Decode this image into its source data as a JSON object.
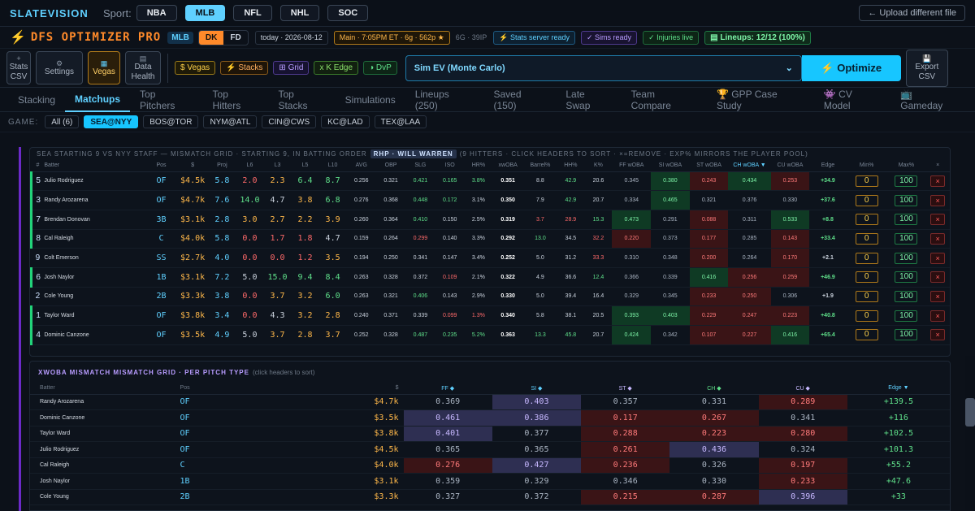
{
  "topbar": {
    "brand": "SLATEVISION",
    "sport_label": "Sport:",
    "sports": [
      {
        "label": "NBA",
        "active": false
      },
      {
        "label": "MLB",
        "active": true
      },
      {
        "label": "NFL",
        "active": false
      },
      {
        "label": "NHL",
        "active": false
      },
      {
        "label": "SOC",
        "active": false
      }
    ],
    "upload_label": "← Upload different file"
  },
  "header": {
    "bolt": "⚡",
    "title": "DFS OPTIMIZER PRO",
    "league": "MLB",
    "site_dk": "DK",
    "site_fd": "FD",
    "date": "today · 2026-08-12",
    "slate": "Main · 7:05PM ET · 6g · 562p ★",
    "slate_meta": "6G · 39IP",
    "stats_status": "⚡ Stats server ready",
    "sims_status": "✓ Sims ready",
    "injuries_status": "✓ Injuries live",
    "lineups_status": "▤ Lineups: 12/12 (100%)"
  },
  "toolbar": {
    "stats_csv": "Stats CSV",
    "settings": "Settings",
    "vegas": "Vegas",
    "data_health": "Data Health",
    "filters": [
      "$ Vegas",
      "⚡ Stacks",
      "⊞ Grid",
      "x K Edge",
      "◑ DvP"
    ],
    "sim_mode": "Sim EV (Monte Carlo)",
    "optimize": "⚡ Optimize",
    "export_csv": "Export CSV"
  },
  "tabs": [
    "Stacking",
    "Matchups",
    "Top Pitchers",
    "Top Hitters",
    "Top Stacks",
    "Simulations",
    "Lineups (250)",
    "Saved (150)",
    "Late Swap",
    "Team Compare",
    "🏆 GPP Case Study",
    "👾 CV Model",
    "📺 Gameday"
  ],
  "active_tab": "Matchups",
  "games": {
    "label": "GAME:",
    "items": [
      {
        "label": "All (6)",
        "active": false
      },
      {
        "label": "SEA@NYY",
        "active": true
      },
      {
        "label": "BOS@TOR",
        "active": false
      },
      {
        "label": "NYM@ATL",
        "active": false
      },
      {
        "label": "CIN@CWS",
        "active": false
      },
      {
        "label": "KC@LAD",
        "active": false
      },
      {
        "label": "TEX@LAA",
        "active": false
      }
    ]
  },
  "grid": {
    "title": "SEA STARTING 9 VS NYY STAFF — MISMATCH GRID · STARTING 9, IN BATTING ORDER",
    "pitcher": "RHP · WILL WARREN",
    "note": "(9 HITTERS · CLICK HEADERS TO SORT · ×=REMOVE · EXP% MIRRORS THE PLAYER POOL)",
    "headers": [
      "#",
      "Batter",
      "Pos",
      "$",
      "Proj",
      "L6",
      "L3",
      "L5",
      "L10",
      "AVG",
      "OBP",
      "SLG",
      "ISO",
      "HR%",
      "xwOBA",
      "Barrel%",
      "HH%",
      "K%",
      "FF wOBA",
      "SI wOBA",
      "ST wOBA",
      "CH wOBA ▼",
      "CU wOBA",
      "Edge",
      "Min%",
      "Max%",
      "×"
    ],
    "rows": [
      [
        "5",
        "Julio Rodriguez",
        "OF",
        "$4.5k",
        "5.8",
        "2.0",
        "2.3",
        "6.4",
        "8.7",
        "0.256",
        "0.321",
        "0.421",
        "0.165",
        "3.8%",
        "0.351",
        "8.8",
        "42.9",
        "20.6",
        "0.345",
        "0.380",
        "0.243",
        "0.434",
        "0.253",
        "+34.9",
        "0",
        "100",
        "×"
      ],
      [
        "3",
        "Randy Arozarena",
        "OF",
        "$4.7k",
        "7.6",
        "14.0",
        "4.7",
        "3.8",
        "6.8",
        "0.276",
        "0.368",
        "0.448",
        "0.172",
        "3.1%",
        "0.350",
        "7.9",
        "42.9",
        "20.7",
        "0.334",
        "0.465",
        "0.321",
        "0.376",
        "0.330",
        "+37.6",
        "0",
        "100",
        "×"
      ],
      [
        "7",
        "Brendan Donovan",
        "3B",
        "$3.1k",
        "2.8",
        "3.0",
        "2.7",
        "2.2",
        "3.9",
        "0.260",
        "0.364",
        "0.410",
        "0.150",
        "2.5%",
        "0.319",
        "3.7",
        "28.9",
        "15.3",
        "0.473",
        "0.291",
        "0.088",
        "0.311",
        "0.533",
        "+8.8",
        "0",
        "100",
        "×"
      ],
      [
        "8",
        "Cal Raleigh",
        "C",
        "$4.0k",
        "5.8",
        "0.0",
        "1.7",
        "1.8",
        "4.7",
        "0.159",
        "0.264",
        "0.299",
        "0.140",
        "3.3%",
        "0.292",
        "13.0",
        "34.5",
        "32.2",
        "0.220",
        "0.373",
        "0.177",
        "0.285",
        "0.143",
        "+33.4",
        "0",
        "100",
        "×"
      ],
      [
        "9",
        "Colt Emerson",
        "SS",
        "$2.7k",
        "4.0",
        "0.0",
        "0.0",
        "1.2",
        "3.5",
        "0.194",
        "0.250",
        "0.341",
        "0.147",
        "3.4%",
        "0.252",
        "5.0",
        "31.2",
        "33.3",
        "0.310",
        "0.348",
        "0.200",
        "0.264",
        "0.170",
        "+2.1",
        "0",
        "100",
        "×"
      ],
      [
        "6",
        "Josh Naylor",
        "1B",
        "$3.1k",
        "7.2",
        "5.0",
        "15.0",
        "9.4",
        "8.4",
        "0.263",
        "0.328",
        "0.372",
        "0.109",
        "2.1%",
        "0.322",
        "4.9",
        "36.6",
        "12.4",
        "0.366",
        "0.339",
        "0.416",
        "0.256",
        "0.259",
        "+46.9",
        "0",
        "100",
        "×"
      ],
      [
        "2",
        "Cole Young",
        "2B",
        "$3.3k",
        "3.8",
        "0.0",
        "3.7",
        "3.2",
        "6.0",
        "0.263",
        "0.321",
        "0.406",
        "0.143",
        "2.9%",
        "0.330",
        "5.0",
        "39.4",
        "16.4",
        "0.329",
        "0.345",
        "0.233",
        "0.250",
        "0.306",
        "+1.9",
        "0",
        "100",
        "×"
      ],
      [
        "1",
        "Taylor Ward",
        "OF",
        "$3.8k",
        "3.4",
        "0.0",
        "4.3",
        "3.2",
        "2.8",
        "0.240",
        "0.371",
        "0.339",
        "0.099",
        "1.3%",
        "0.340",
        "5.8",
        "38.1",
        "20.5",
        "0.393",
        "0.403",
        "0.229",
        "0.247",
        "0.223",
        "+40.8",
        "0",
        "100",
        "×"
      ],
      [
        "4",
        "Dominic Canzone",
        "OF",
        "$3.5k",
        "4.9",
        "5.0",
        "3.7",
        "2.8",
        "3.7",
        "0.252",
        "0.328",
        "0.487",
        "0.235",
        "5.2%",
        "0.363",
        "13.3",
        "45.8",
        "20.7",
        "0.424",
        "0.342",
        "0.107",
        "0.227",
        "0.416",
        "+65.4",
        "0",
        "100",
        "×"
      ]
    ]
  },
  "xwoba": {
    "title": "XWOBA MISMATCH MISMATCH GRID · PER PITCH TYPE",
    "subtitle": "(click headers to sort)",
    "headers": [
      "Batter",
      "Pos",
      "$",
      "FF ◆",
      "SI ◆",
      "ST ◆",
      "CH ◆",
      "CU ◆",
      "Edge ▼"
    ],
    "rows": [
      [
        "Randy Arozarena",
        "OF",
        "$4.7k",
        "0.369",
        "0.403",
        "0.357",
        "0.331",
        "0.289",
        "+139.5"
      ],
      [
        "Dominic Canzone",
        "OF",
        "$3.5k",
        "0.461",
        "0.386",
        "0.117",
        "0.267",
        "0.341",
        "+116"
      ],
      [
        "Taylor Ward",
        "OF",
        "$3.8k",
        "0.401",
        "0.377",
        "0.288",
        "0.223",
        "0.280",
        "+102.5"
      ],
      [
        "Julio Rodriguez",
        "OF",
        "$4.5k",
        "0.365",
        "0.365",
        "0.261",
        "0.436",
        "0.324",
        "+101.3"
      ],
      [
        "Cal Raleigh",
        "C",
        "$4.0k",
        "0.276",
        "0.427",
        "0.236",
        "0.326",
        "0.197",
        "+55.2"
      ],
      [
        "Josh Naylor",
        "1B",
        "$3.1k",
        "0.359",
        "0.329",
        "0.346",
        "0.330",
        "0.233",
        "+47.6"
      ],
      [
        "Cole Young",
        "2B",
        "$3.3k",
        "0.327",
        "0.372",
        "0.215",
        "0.287",
        "0.396",
        "+33"
      ]
    ]
  }
}
